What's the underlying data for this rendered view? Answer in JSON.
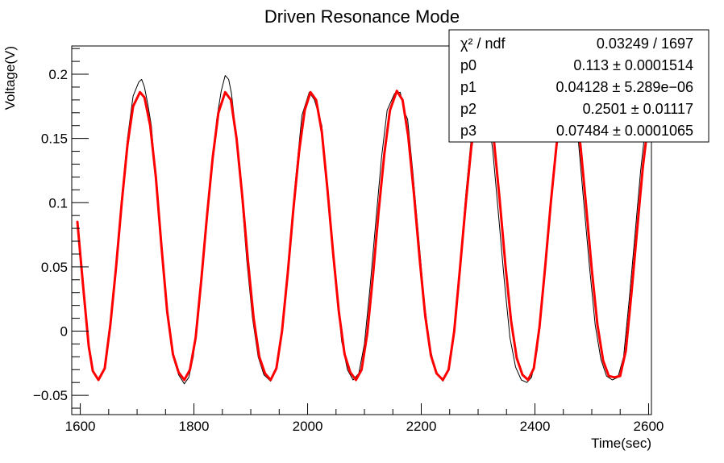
{
  "chart_data": {
    "type": "line",
    "title": "Driven Resonance Mode",
    "xlabel": "Time(sec)",
    "ylabel": "Voltage(V)",
    "xlim": [
      1585,
      2605
    ],
    "ylim": [
      -0.065,
      0.222
    ],
    "x_ticks": [
      1600,
      1800,
      2000,
      2200,
      2400,
      2600
    ],
    "y_ticks": [
      -0.05,
      0,
      0.05,
      0.1,
      0.15,
      0.2
    ],
    "x_tick_labels": [
      "1600",
      "1800",
      "2000",
      "2200",
      "2400",
      "2600"
    ],
    "y_tick_labels": [
      "−0.05",
      "0",
      "0.05",
      "0.1",
      "0.15",
      "0.2"
    ],
    "grid": false,
    "series": [
      {
        "color": "#000000",
        "line_width": 1,
        "points": [
          [
            1595,
            0.085
          ],
          [
            1605,
            0.035
          ],
          [
            1615,
            -0.012
          ],
          [
            1622,
            -0.031
          ],
          [
            1632,
            -0.038
          ],
          [
            1643,
            -0.029
          ],
          [
            1653,
            0.005
          ],
          [
            1663,
            0.055
          ],
          [
            1673,
            0.105
          ],
          [
            1683,
            0.15
          ],
          [
            1693,
            0.183
          ],
          [
            1703,
            0.194
          ],
          [
            1708,
            0.196
          ],
          [
            1713,
            0.19
          ],
          [
            1719,
            0.176
          ],
          [
            1725,
            0.16
          ],
          [
            1733,
            0.12
          ],
          [
            1743,
            0.065
          ],
          [
            1753,
            0.015
          ],
          [
            1763,
            -0.02
          ],
          [
            1773,
            -0.034
          ],
          [
            1783,
            -0.041
          ],
          [
            1791,
            -0.036
          ],
          [
            1799,
            -0.02
          ],
          [
            1810,
            0.025
          ],
          [
            1820,
            0.075
          ],
          [
            1830,
            0.125
          ],
          [
            1840,
            0.165
          ],
          [
            1848,
            0.187
          ],
          [
            1855,
            0.199
          ],
          [
            1861,
            0.196
          ],
          [
            1866,
            0.185
          ],
          [
            1873,
            0.158
          ],
          [
            1883,
            0.11
          ],
          [
            1893,
            0.055
          ],
          [
            1903,
            0.01
          ],
          [
            1913,
            -0.02
          ],
          [
            1923,
            -0.034
          ],
          [
            1935,
            -0.039
          ],
          [
            1946,
            -0.028
          ],
          [
            1957,
            0.005
          ],
          [
            1967,
            0.055
          ],
          [
            1977,
            0.11
          ],
          [
            1990,
            0.168
          ],
          [
            2003,
            0.186
          ],
          [
            2012,
            0.18
          ],
          [
            2020,
            0.168
          ],
          [
            2025,
            0.16
          ],
          [
            2030,
            0.135
          ],
          [
            2040,
            0.085
          ],
          [
            2050,
            0.035
          ],
          [
            2060,
            -0.008
          ],
          [
            2070,
            -0.03
          ],
          [
            2080,
            -0.038
          ],
          [
            2090,
            -0.033
          ],
          [
            2100,
            -0.01
          ],
          [
            2110,
            0.035
          ],
          [
            2120,
            0.085
          ],
          [
            2130,
            0.135
          ],
          [
            2140,
            0.172
          ],
          [
            2153,
            0.185
          ],
          [
            2163,
            0.186
          ],
          [
            2171,
            0.17
          ],
          [
            2176,
            0.165
          ],
          [
            2185,
            0.125
          ],
          [
            2195,
            0.075
          ],
          [
            2205,
            0.025
          ],
          [
            2215,
            -0.012
          ],
          [
            2225,
            -0.031
          ],
          [
            2238,
            -0.039
          ],
          [
            2248,
            -0.03
          ],
          [
            2258,
            0.0
          ],
          [
            2268,
            0.05
          ],
          [
            2278,
            0.105
          ],
          [
            2288,
            0.15
          ],
          [
            2296,
            0.18
          ],
          [
            2306,
            0.186
          ],
          [
            2316,
            0.175
          ],
          [
            2326,
            0.14
          ],
          [
            2336,
            0.09
          ],
          [
            2346,
            0.04
          ],
          [
            2356,
            -0.005
          ],
          [
            2366,
            -0.028
          ],
          [
            2376,
            -0.038
          ],
          [
            2386,
            -0.04
          ],
          [
            2394,
            -0.036
          ],
          [
            2404,
            -0.015
          ],
          [
            2414,
            0.03
          ],
          [
            2424,
            0.08
          ],
          [
            2434,
            0.13
          ],
          [
            2444,
            0.168
          ],
          [
            2456,
            0.186
          ],
          [
            2466,
            0.18
          ],
          [
            2476,
            0.15
          ],
          [
            2486,
            0.1
          ],
          [
            2496,
            0.05
          ],
          [
            2506,
            0.005
          ],
          [
            2516,
            -0.022
          ],
          [
            2526,
            -0.035
          ],
          [
            2536,
            -0.038
          ],
          [
            2546,
            -0.036
          ],
          [
            2556,
            -0.02
          ],
          [
            2566,
            0.025
          ],
          [
            2576,
            0.075
          ],
          [
            2586,
            0.125
          ],
          [
            2596,
            0.165
          ],
          [
            2602,
            0.185
          ]
        ]
      },
      {
        "color": "#ff0000",
        "line_width": 3,
        "points": [
          [
            1595,
            0.085
          ],
          [
            1605,
            0.035
          ],
          [
            1615,
            -0.012
          ],
          [
            1622,
            -0.031
          ],
          [
            1632,
            -0.038
          ],
          [
            1643,
            -0.029
          ],
          [
            1653,
            0.005
          ],
          [
            1663,
            0.05
          ],
          [
            1673,
            0.1
          ],
          [
            1683,
            0.145
          ],
          [
            1693,
            0.175
          ],
          [
            1705,
            0.186
          ],
          [
            1713,
            0.182
          ],
          [
            1723,
            0.16
          ],
          [
            1733,
            0.12
          ],
          [
            1743,
            0.065
          ],
          [
            1753,
            0.015
          ],
          [
            1763,
            -0.018
          ],
          [
            1773,
            -0.032
          ],
          [
            1783,
            -0.038
          ],
          [
            1793,
            -0.03
          ],
          [
            1803,
            -0.005
          ],
          [
            1813,
            0.04
          ],
          [
            1823,
            0.09
          ],
          [
            1833,
            0.135
          ],
          [
            1843,
            0.17
          ],
          [
            1855,
            0.186
          ],
          [
            1865,
            0.18
          ],
          [
            1875,
            0.15
          ],
          [
            1885,
            0.105
          ],
          [
            1895,
            0.055
          ],
          [
            1905,
            0.01
          ],
          [
            1915,
            -0.02
          ],
          [
            1925,
            -0.033
          ],
          [
            1935,
            -0.038
          ],
          [
            1945,
            -0.029
          ],
          [
            1955,
            0.0
          ],
          [
            1965,
            0.045
          ],
          [
            1975,
            0.095
          ],
          [
            1985,
            0.14
          ],
          [
            1995,
            0.172
          ],
          [
            2005,
            0.186
          ],
          [
            2015,
            0.18
          ],
          [
            2025,
            0.155
          ],
          [
            2035,
            0.11
          ],
          [
            2045,
            0.06
          ],
          [
            2055,
            0.015
          ],
          [
            2065,
            -0.018
          ],
          [
            2075,
            -0.032
          ],
          [
            2085,
            -0.038
          ],
          [
            2095,
            -0.03
          ],
          [
            2105,
            -0.002
          ],
          [
            2115,
            0.043
          ],
          [
            2125,
            0.093
          ],
          [
            2135,
            0.138
          ],
          [
            2145,
            0.172
          ],
          [
            2157,
            0.187
          ],
          [
            2167,
            0.18
          ],
          [
            2177,
            0.152
          ],
          [
            2187,
            0.107
          ],
          [
            2197,
            0.057
          ],
          [
            2207,
            0.012
          ],
          [
            2217,
            -0.019
          ],
          [
            2227,
            -0.033
          ],
          [
            2238,
            -0.038
          ],
          [
            2248,
            -0.03
          ],
          [
            2258,
            0.0
          ],
          [
            2268,
            0.048
          ],
          [
            2278,
            0.098
          ],
          [
            2288,
            0.143
          ],
          [
            2298,
            0.174
          ],
          [
            2308,
            0.186
          ],
          [
            2318,
            0.178
          ],
          [
            2328,
            0.148
          ],
          [
            2338,
            0.102
          ],
          [
            2348,
            0.052
          ],
          [
            2358,
            0.008
          ],
          [
            2368,
            -0.021
          ],
          [
            2378,
            -0.034
          ],
          [
            2388,
            -0.038
          ],
          [
            2398,
            -0.029
          ],
          [
            2408,
            0.003
          ],
          [
            2418,
            0.05
          ],
          [
            2428,
            0.1
          ],
          [
            2438,
            0.145
          ],
          [
            2448,
            0.176
          ],
          [
            2460,
            0.186
          ],
          [
            2470,
            0.176
          ],
          [
            2480,
            0.145
          ],
          [
            2490,
            0.098
          ],
          [
            2500,
            0.048
          ],
          [
            2510,
            0.005
          ],
          [
            2520,
            -0.023
          ],
          [
            2530,
            -0.035
          ],
          [
            2540,
            -0.036
          ],
          [
            2550,
            -0.035
          ],
          [
            2560,
            -0.015
          ],
          [
            2570,
            0.03
          ],
          [
            2580,
            0.08
          ],
          [
            2590,
            0.128
          ],
          [
            2600,
            0.165
          ],
          [
            2604,
            0.188
          ]
        ]
      }
    ]
  },
  "stats_box": {
    "rows": [
      {
        "label": "χ² / ndf",
        "value": "0.03249 / 1697"
      },
      {
        "label": "p0",
        "value": "0.113 ± 0.0001514"
      },
      {
        "label": "p1",
        "value": "0.04128 ± 5.289e−06"
      },
      {
        "label": "p2",
        "value": "0.2501 ± 0.01117"
      },
      {
        "label": "p3",
        "value": "0.07484 ± 0.0001065"
      }
    ]
  }
}
